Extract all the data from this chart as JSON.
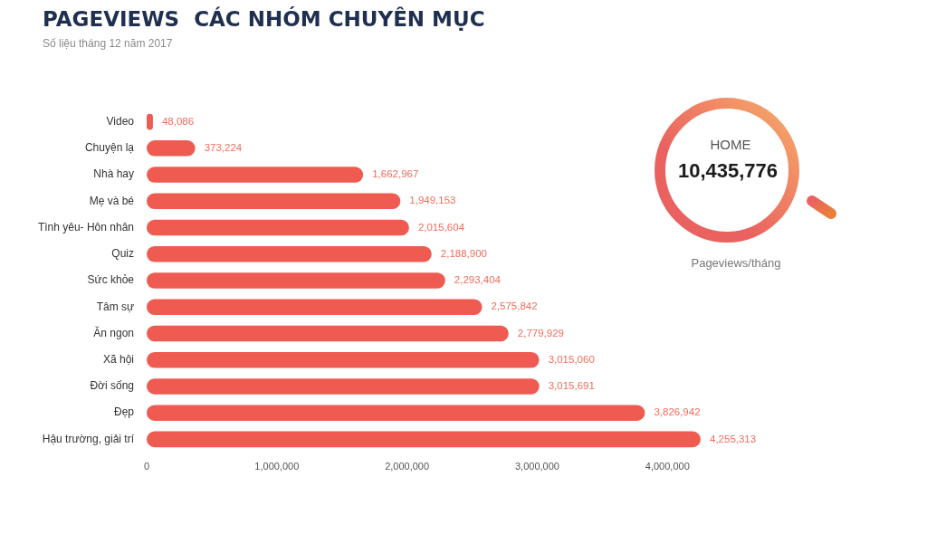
{
  "chart_data": {
    "type": "bar",
    "orientation": "horizontal",
    "title": "PAGEVIEWS  CÁC NHÓM CHUYÊN MỤC",
    "subtitle": "Số liệu tháng 12 năm 2017",
    "categories": [
      "Video",
      "Chuyện lạ",
      "Nhà hay",
      "Mẹ và bé",
      "Tình yêu- Hôn nhân",
      "Quiz",
      "Sức khỏe",
      "Tâm sự",
      "Ăn ngon",
      "Xã hội",
      "Đời sống",
      "Đẹp",
      "Hậu trường, giải trí"
    ],
    "values": [
      48086,
      373224,
      1662967,
      1949153,
      2015604,
      2188900,
      2293404,
      2575842,
      2779929,
      3015060,
      3015691,
      3826942,
      4255313
    ],
    "value_labels": [
      "48,086",
      "373,224",
      "1,662,967",
      "1,949,153",
      "2,015,604",
      "2,188,900",
      "2,293,404",
      "2,575,842",
      "2,779,929",
      "3,015,060",
      "3,015,691",
      "3,826,942",
      "4,255,313"
    ],
    "color": "#ef5b50",
    "xlim": [
      0,
      4255313
    ],
    "xticks": [
      0,
      {
        "value": 1000000,
        "label": "1,000,000"
      },
      {
        "value": 2000000,
        "label": "2,000,000"
      },
      {
        "value": 3000000,
        "label": "3,000,000"
      },
      {
        "value": 4000000,
        "label": "4,000,000"
      }
    ],
    "annotations": [
      "HOME",
      "10,435,776",
      "Pageviews/tháng"
    ]
  }
}
